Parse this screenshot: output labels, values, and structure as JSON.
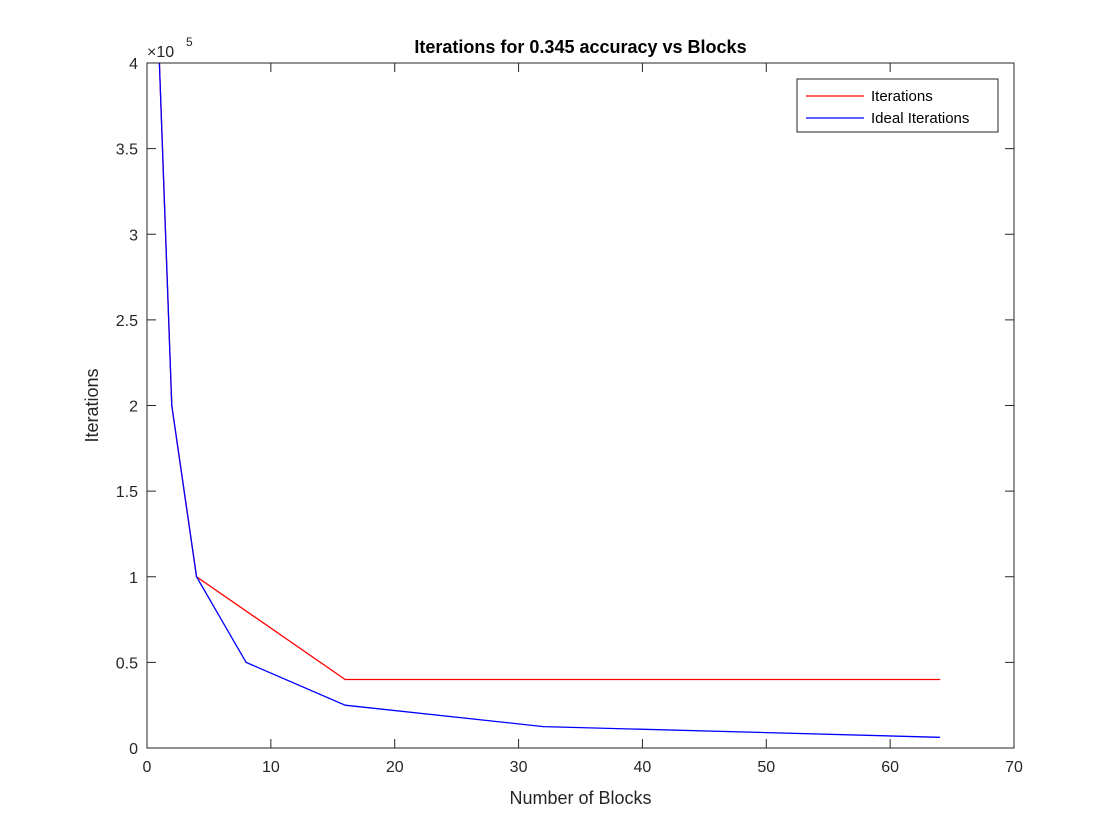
{
  "chart_data": {
    "type": "line",
    "title": "Iterations for 0.345 accuracy vs Blocks",
    "xlabel": "Number of Blocks",
    "ylabel": "Iterations",
    "xlim": [
      0,
      70
    ],
    "ylim": [
      0,
      400000
    ],
    "x_ticks": [
      0,
      10,
      20,
      30,
      40,
      50,
      60,
      70
    ],
    "x_tick_labels": [
      "0",
      "10",
      "20",
      "30",
      "40",
      "50",
      "60",
      "70"
    ],
    "y_ticks": [
      0,
      50000,
      100000,
      150000,
      200000,
      250000,
      300000,
      350000,
      400000
    ],
    "y_tick_labels": [
      "0",
      "0.5",
      "1",
      "1.5",
      "2",
      "2.5",
      "3",
      "3.5",
      "4"
    ],
    "y_exponent_base": "×10",
    "y_exponent_power": "5",
    "grid": false,
    "legend_position": "top-right",
    "series": [
      {
        "name": "Iterations",
        "color": "#ff0000",
        "x": [
          1,
          2,
          4,
          16,
          64
        ],
        "y": [
          400000,
          200000,
          100000,
          40000,
          40000
        ]
      },
      {
        "name": "Ideal Iterations",
        "color": "#0000ff",
        "x": [
          1,
          2,
          4,
          8,
          16,
          32,
          64
        ],
        "y": [
          400000,
          200000,
          100000,
          50000,
          25000,
          12500,
          6250
        ]
      }
    ]
  }
}
